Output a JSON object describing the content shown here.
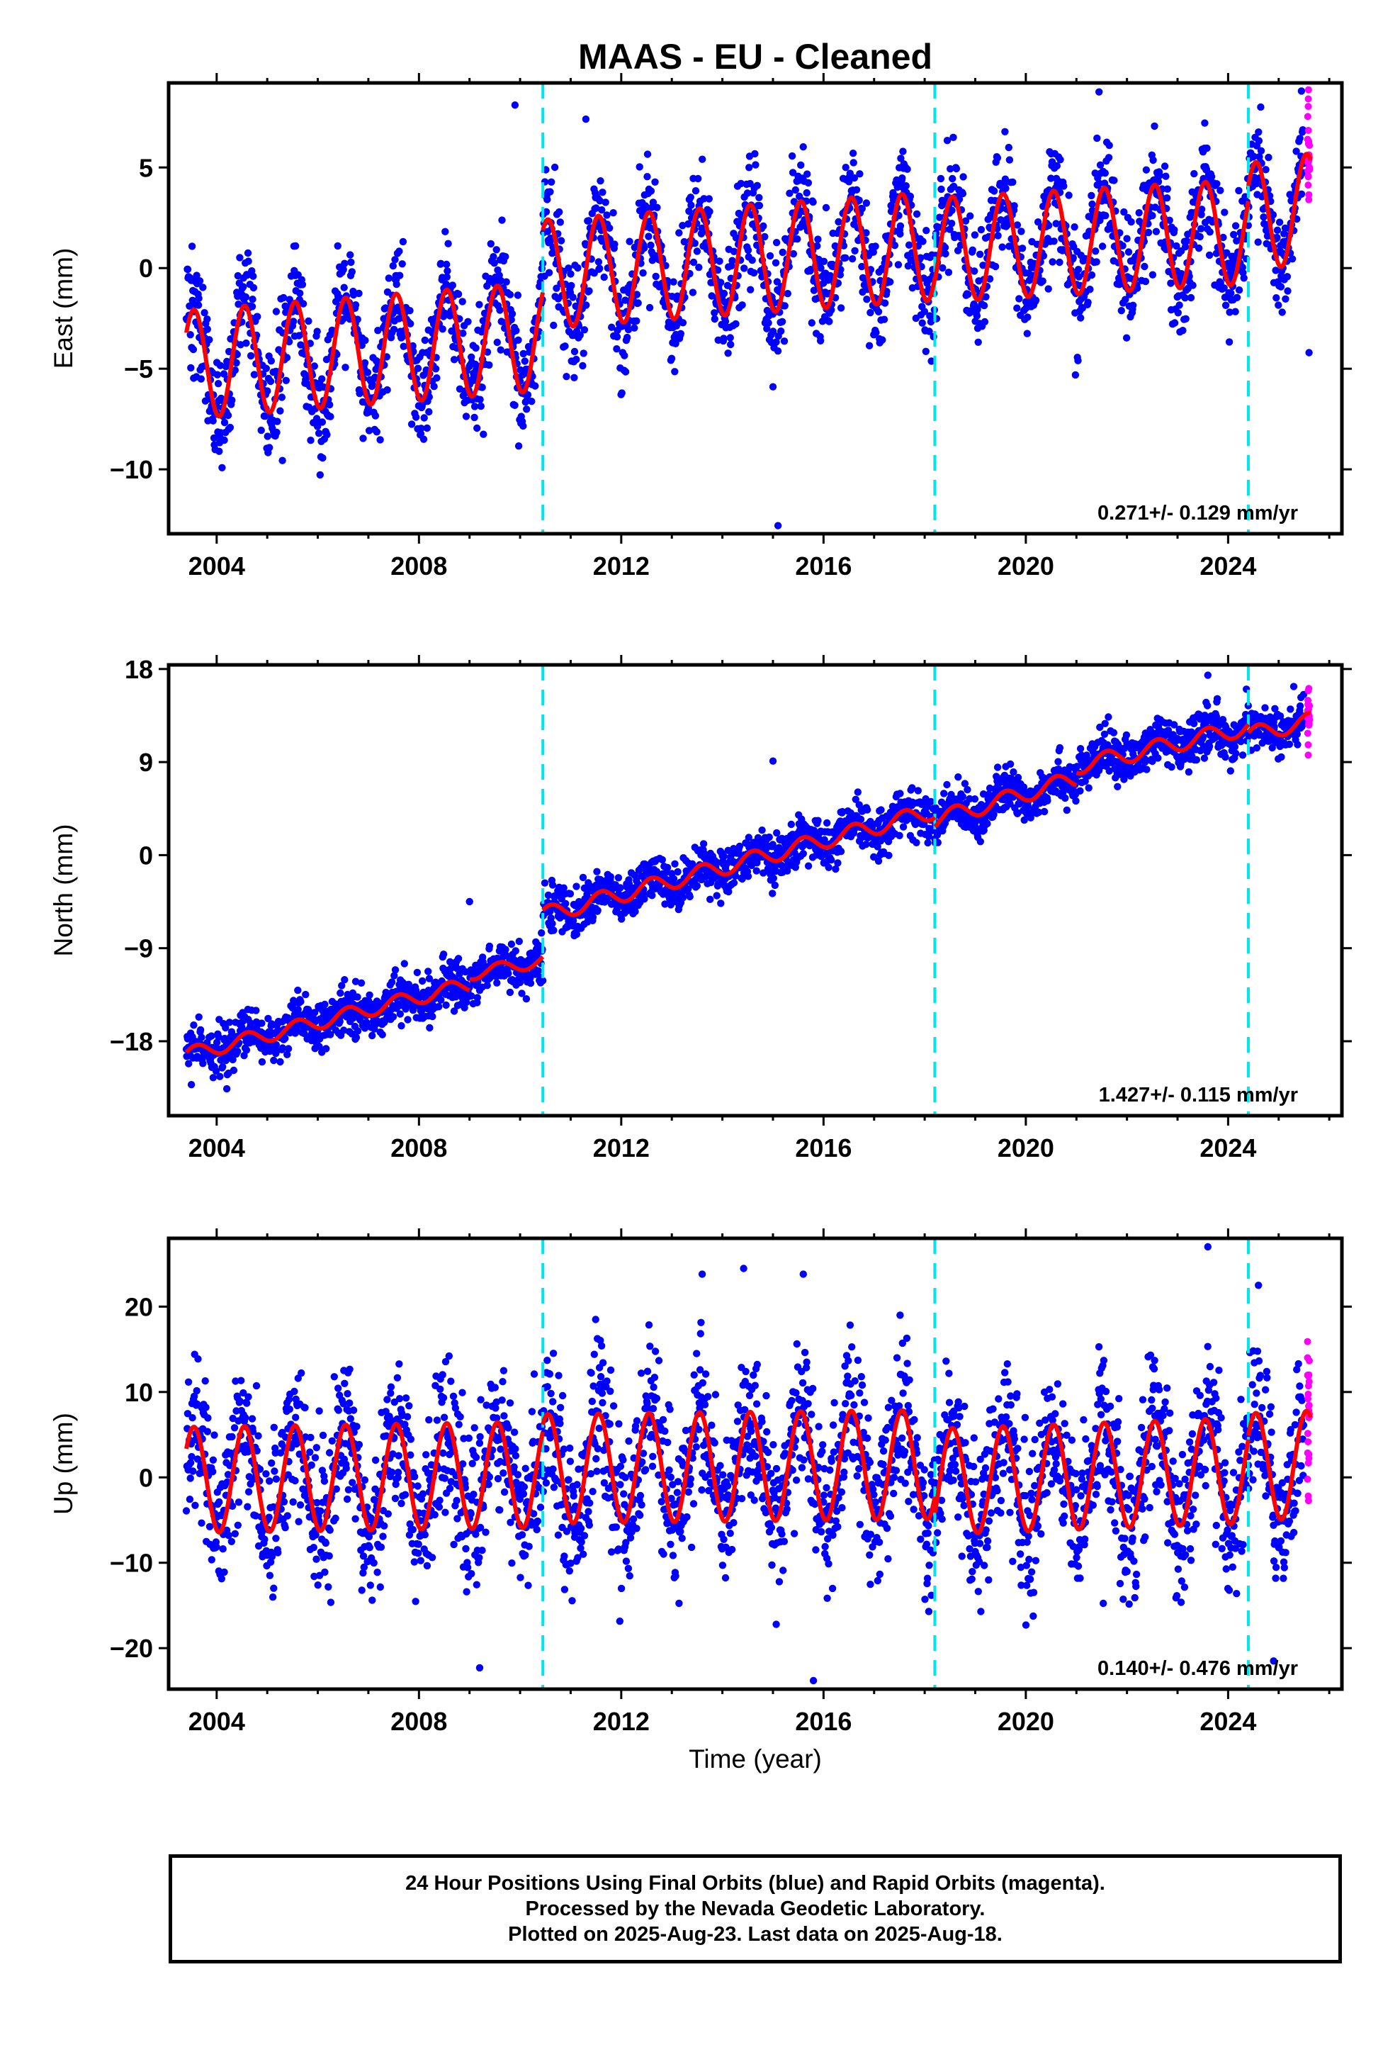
{
  "title": "MAAS  - EU - Cleaned",
  "xlabel": "Time (year)",
  "caption": {
    "line1": "24 Hour Positions Using Final Orbits (blue) and Rapid Orbits (magenta).",
    "line2": "Processed by the Nevada Geodetic Laboratory.",
    "line3": "Plotted on 2025-Aug-23. Last data on 2025-Aug-18."
  },
  "colors": {
    "final_orbits": "#0000ff",
    "rapid_orbits": "#ff00ff",
    "model_fit": "#ff0000",
    "equipment_change": "#00e5ee"
  },
  "chart_data": [
    {
      "type": "scatter",
      "component": "East",
      "ylabel": "East (mm)",
      "rate_label": "0.271+/- 0.129 mm/yr",
      "xlim": [
        2003.05,
        2026.25
      ],
      "ylim": [
        -13.2,
        9.2
      ],
      "xticks": [
        2004,
        2008,
        2012,
        2016,
        2020,
        2024
      ],
      "yticks": [
        -10,
        -5,
        0,
        5
      ],
      "data_start": 2003.4,
      "data_end": 2025.63,
      "rapid_start": 2025.5,
      "equipment_changes": [
        2010.45,
        2018.2,
        2024.4
      ],
      "model_fit": {
        "segments": [
          {
            "start": 2003.4,
            "end": 2010.45,
            "offset_at_start": -4.8,
            "offset_at_end": -3.4,
            "amplitude": 2.7
          },
          {
            "start": 2010.45,
            "end": 2018.2,
            "offset_at_start": -0.3,
            "offset_at_end": 1.1,
            "amplitude": 2.7
          },
          {
            "start": 2018.2,
            "end": 2024.4,
            "offset_at_start": 0.9,
            "offset_at_end": 1.8,
            "amplitude": 2.6
          },
          {
            "start": 2024.4,
            "end": 2025.63,
            "offset_at_start": 2.5,
            "offset_at_end": 3.0,
            "amplitude": 2.7
          }
        ],
        "peak_phase": 0.55
      },
      "scatter_sigma": 1.4,
      "outliers": [
        [
          2009.9,
          8.1
        ],
        [
          2011.3,
          7.4
        ],
        [
          2015.1,
          -12.8
        ],
        [
          2015.0,
          -5.9
        ],
        [
          2025.45,
          8.8
        ],
        [
          2025.6,
          -4.2
        ]
      ]
    },
    {
      "type": "scatter",
      "component": "North",
      "ylabel": "North (mm)",
      "rate_label": "1.427+/- 0.115 mm/yr",
      "xlim": [
        2003.05,
        2026.25
      ],
      "ylim": [
        -25.2,
        18.4
      ],
      "xticks": [
        2004,
        2008,
        2012,
        2016,
        2020,
        2024
      ],
      "yticks": [
        -18,
        -9,
        0,
        9,
        18
      ],
      "data_start": 2003.4,
      "data_end": 2025.63,
      "rapid_start": 2025.5,
      "equipment_changes": [
        2010.45,
        2018.2,
        2024.4
      ],
      "model_fit": {
        "segments": [
          {
            "start": 2003.4,
            "end": 2009.0,
            "offset_at_start": -19.3,
            "offset_at_end": -12.5,
            "amplitude": 0.7
          },
          {
            "start": 2009.0,
            "end": 2010.45,
            "offset_at_start": -11.5,
            "offset_at_end": -10.2,
            "amplitude": 0.6
          },
          {
            "start": 2010.45,
            "end": 2018.2,
            "offset_at_start": -5.8,
            "offset_at_end": 4.3,
            "amplitude": 0.8
          },
          {
            "start": 2018.2,
            "end": 2021.0,
            "offset_at_start": 3.4,
            "offset_at_end": 7.4,
            "amplitude": 0.8
          },
          {
            "start": 2021.0,
            "end": 2024.4,
            "offset_at_start": 8.6,
            "offset_at_end": 12.4,
            "amplitude": 0.8
          },
          {
            "start": 2024.4,
            "end": 2025.63,
            "offset_at_start": 11.6,
            "offset_at_end": 13.0,
            "amplitude": 0.8
          }
        ],
        "peak_phase": 0.6
      },
      "scatter_sigma": 1.1,
      "outliers": [
        [
          2003.5,
          -22.2
        ],
        [
          2004.2,
          -22.6
        ],
        [
          2015.0,
          9.1
        ],
        [
          2023.6,
          17.4
        ],
        [
          2009.0,
          -4.5
        ]
      ]
    },
    {
      "type": "scatter",
      "component": "Up",
      "ylabel": "Up (mm)",
      "rate_label": "0.140+/- 0.476 mm/yr",
      "xlim": [
        2003.05,
        2026.25
      ],
      "ylim": [
        -24.8,
        28.0
      ],
      "xticks": [
        2004,
        2008,
        2012,
        2016,
        2020,
        2024
      ],
      "yticks": [
        -20,
        -10,
        0,
        10,
        20
      ],
      "data_start": 2003.4,
      "data_end": 2025.63,
      "rapid_start": 2025.5,
      "equipment_changes": [
        2010.45,
        2018.2,
        2024.4
      ],
      "model_fit": {
        "segments": [
          {
            "start": 2003.4,
            "end": 2010.45,
            "offset_at_start": -0.3,
            "offset_at_end": 0.3,
            "amplitude": 6.2
          },
          {
            "start": 2010.45,
            "end": 2018.2,
            "offset_at_start": 1.0,
            "offset_at_end": 1.5,
            "amplitude": 6.4
          },
          {
            "start": 2018.2,
            "end": 2024.4,
            "offset_at_start": -0.5,
            "offset_at_end": 0.8,
            "amplitude": 6.2
          },
          {
            "start": 2024.4,
            "end": 2025.63,
            "offset_at_start": 1.2,
            "offset_at_end": 1.5,
            "amplitude": 6.3
          }
        ],
        "peak_phase": 0.55
      },
      "scatter_sigma": 4.4,
      "outliers": [
        [
          2013.6,
          23.8
        ],
        [
          2015.6,
          23.8
        ],
        [
          2023.6,
          27.0
        ],
        [
          2024.6,
          22.5
        ],
        [
          2015.8,
          -23.8
        ],
        [
          2009.2,
          -22.3
        ],
        [
          2024.9,
          -21.5
        ]
      ]
    }
  ]
}
